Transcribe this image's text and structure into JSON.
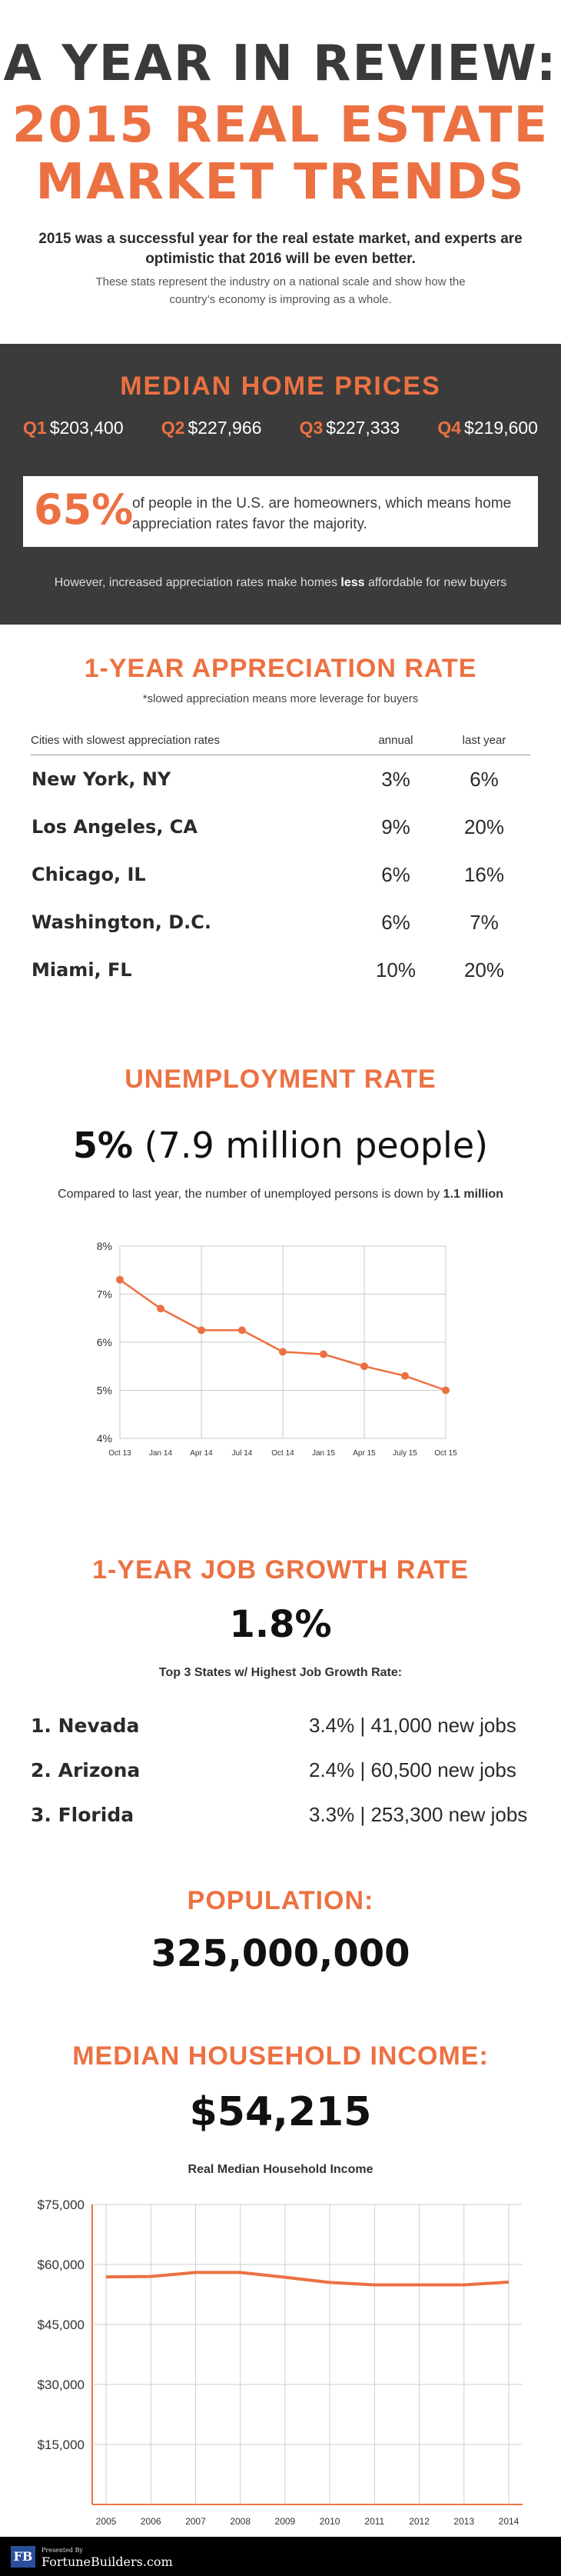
{
  "header": {
    "title_line1": "A YEAR IN REVIEW:",
    "title_line2": "2015 REAL ESTATE",
    "title_line3": "MARKET TRENDS",
    "lead": "2015 was a successful year for the real estate market, and experts are optimistic that 2016 will be even better.",
    "sub": "These stats represent the industry on a national scale and show how the country’s economy is improving as a whole."
  },
  "median": {
    "title": "MEDIAN HOME PRICES",
    "quarters": [
      {
        "q": "Q1",
        "price": "$203,400"
      },
      {
        "q": "Q2",
        "price": "$227,966"
      },
      {
        "q": "Q3",
        "price": "$227,333"
      },
      {
        "q": "Q4",
        "price": "$219,600"
      }
    ],
    "stat_pct": "65%",
    "stat_text": "of people in the U.S. are homeowners, which means home appreciation rates favor the majority.",
    "note_pre": "However, increased appreciation rates make homes ",
    "note_bold": "less",
    "note_post": " affordable for new buyers"
  },
  "appreciation": {
    "title": "1-YEAR APPRECIATION RATE",
    "note": "*slowed appreciation means more leverage for buyers",
    "col_city": "Cities with slowest appreciation rates",
    "col_annual": "annual",
    "col_last": "last year",
    "rows": [
      {
        "city": "New York, NY",
        "annual": "3%",
        "last": "6%"
      },
      {
        "city": "Los Angeles, CA",
        "annual": "9%",
        "last": "20%"
      },
      {
        "city": "Chicago, IL",
        "annual": "6%",
        "last": "16%"
      },
      {
        "city": "Washington, D.C.",
        "annual": "6%",
        "last": "7%"
      },
      {
        "city": "Miami, FL",
        "annual": "10%",
        "last": "20%"
      }
    ]
  },
  "unemployment": {
    "title": "UNEMPLOYMENT RATE",
    "big_bold": "5%",
    "big_rest": " (7.9 million people)",
    "cmp_pre": "Compared to last year, the number of unemployed persons is down by ",
    "cmp_bold": "1.1 million"
  },
  "job": {
    "title": "1-YEAR JOB GROWTH RATE",
    "big": "1.8%",
    "sub": "Top 3 States w/ Highest Job Growth Rate:",
    "rows": [
      {
        "state": "1. Nevada",
        "value": "3.4% | 41,000 new jobs"
      },
      {
        "state": "2. Arizona",
        "value": "2.4% | 60,500 new jobs"
      },
      {
        "state": "3. Florida",
        "value": "3.3% | 253,300 new jobs"
      }
    ]
  },
  "population": {
    "title": "POPULATION:",
    "big": "325,000,000"
  },
  "income": {
    "title": "MEDIAN HOUSEHOLD INCOME:",
    "big": "$54,215",
    "sub": "Real Median Household Income"
  },
  "footer": {
    "logo": "FB",
    "presented": "Presented By",
    "brand": "FortuneBuilders.com"
  },
  "colors": {
    "accent": "#ec7142",
    "dark": "#3b3b3b",
    "footer": "#000000"
  },
  "chart_data": [
    {
      "type": "line",
      "x": [
        "Oct 13",
        "Jan 14",
        "Apr 14",
        "Jul 14",
        "Oct 14",
        "Jan 15",
        "Apr 15",
        "July 15",
        "Oct 15"
      ],
      "series": [
        {
          "values": [
            7.3,
            6.7,
            6.25,
            6.25,
            5.8,
            5.75,
            5.5,
            5.3,
            5.0
          ]
        }
      ],
      "yticks": [
        "8%",
        "7%",
        "6%",
        "5%",
        "4%"
      ],
      "ylim": [
        4,
        8
      ],
      "grid": true
    },
    {
      "type": "line",
      "x": [
        "2005",
        "2006",
        "2007",
        "2008",
        "2009",
        "2010",
        "2011",
        "2012",
        "2013",
        "2014"
      ],
      "series": [
        {
          "values": [
            56900,
            57000,
            58000,
            58000,
            56800,
            55500,
            54900,
            54900,
            54900,
            55600
          ]
        }
      ],
      "yticks": [
        "$75,000",
        "$60,000",
        "$45,000",
        "$30,000",
        "$15,000"
      ],
      "ylim": [
        0,
        75000
      ],
      "grid": true
    }
  ]
}
